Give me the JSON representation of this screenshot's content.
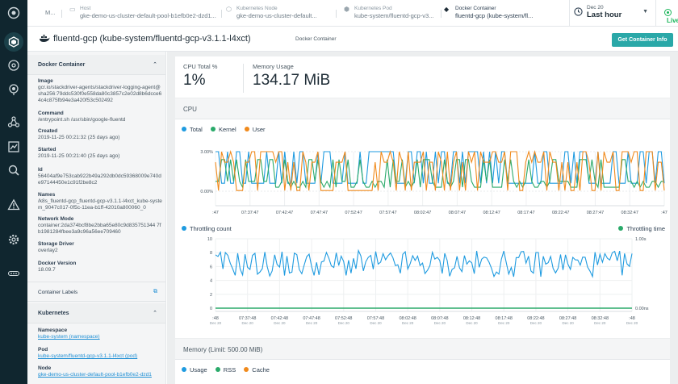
{
  "rail": {
    "icons": [
      "app-logo-icon",
      "explore-icon",
      "dashboard-icon",
      "alerts-icon",
      "topology-icon",
      "metrics-icon",
      "investigate-icon",
      "warning-icon",
      "settings-icon",
      "more-icon"
    ]
  },
  "breadcrumbs": [
    {
      "type": "",
      "name": "M..."
    },
    {
      "type": "Host",
      "name": "gke-demo-us-cluster-default-pool-b1efb0e2-dzd1..."
    },
    {
      "type": "Kubernetes Node",
      "name": "gke-demo-us-cluster-default..."
    },
    {
      "type": "Kubernetes Pod",
      "name": "kube-system/fluentd-gcp-v3..."
    },
    {
      "type": "Docker Container",
      "name": "fluentd-gcp (kube-system/fl..."
    }
  ],
  "time_picker": {
    "date": "Dec 20",
    "range": "Last hour"
  },
  "live": {
    "label": "Live",
    "color": "#19b55a"
  },
  "title": {
    "name": "fluentd-gcp (kube-system/fluentd-gcp-v3.1.1-l4xct)",
    "type_badge": "Docker Container",
    "action_button": "Get Container Info"
  },
  "side": {
    "docker_header": "Docker Container",
    "fields": [
      {
        "label": "Image",
        "value": "gcr.io/stackdriver-agents/stackdriver-logging-agent@sha256:79ddc530f0e558da80c3857c2e02d8b6dcce64c4c875fb94e3a420f53c502492"
      },
      {
        "label": "Command",
        "value": "/entrypoint.sh /usr/sbin/google-fluentd"
      },
      {
        "label": "Created",
        "value": "2019-11-25 00:21:32 (25 days ago)"
      },
      {
        "label": "Started",
        "value": "2019-11-25 00:21:40 (25 days ago)"
      },
      {
        "label": "Id",
        "value": "56404af9e753cab922b49a292db0dc59368009e740de97144450e1c91f2be8c2"
      },
      {
        "label": "Names",
        "value": "/k8s_fluentd-gcp_fluentd-gcp-v3.1.1-l4xct_kube-system_9047c017-0f5c-11ea-b1ff-42010a800060_0"
      },
      {
        "label": "Network Mode",
        "value": "container:2da374bcf8be2bba65e80c9d835751344 7fb1981284fbee3a9c96a56ee709460"
      },
      {
        "label": "Storage Driver",
        "value": "overlay2"
      },
      {
        "label": "Docker Version",
        "value": "18.09.7"
      }
    ],
    "labels_row": "Container Labels",
    "kubernetes_header": "Kubernetes",
    "kube_fields": [
      {
        "label": "Namespace",
        "value": "kube-system (namespace)"
      },
      {
        "label": "Pod",
        "value": "kube-system/fluentd-gcp-v3.1.1-l4xct (pod)"
      },
      {
        "label": "Node",
        "value": "gke-demo-us-cluster-default-pool-b1efb0e2-dzd1"
      }
    ]
  },
  "stats": [
    {
      "label": "CPU Total %",
      "value": "1%"
    },
    {
      "label": "Memory Usage",
      "value": "134.17 MiB"
    }
  ],
  "cpu_card": {
    "title": "CPU"
  },
  "memory_card": {
    "title": "Memory (Limit: 500.00 MiB)"
  },
  "chart_data": [
    {
      "type": "line",
      "title": "CPU",
      "series": [
        {
          "name": "Total",
          "color": "#1f9be0"
        },
        {
          "name": "Kernel",
          "color": "#2aaa6a"
        },
        {
          "name": "User",
          "color": "#f08a1c"
        }
      ],
      "ytick_labels": [
        "3.00%",
        "0.00%"
      ],
      "ylim": [
        0,
        3
      ],
      "xtick_labels": [
        ":47",
        "07:37:47",
        "07:42:47",
        "07:47:47",
        "07:52:47",
        "07:57:47",
        "08:02:47",
        "08:07:47",
        "08:12:47",
        "08:17:47",
        "08:22:47",
        "08:27:47",
        "08:32:47",
        ":47"
      ],
      "xtick_date": "Dec 20",
      "grid": true,
      "legend": "top-left"
    },
    {
      "type": "line",
      "title": "",
      "series": [
        {
          "name": "Throttling count",
          "color": "#1f9be0",
          "axis": "left"
        },
        {
          "name": "Throttling time",
          "color": "#2aaa6a",
          "axis": "right"
        }
      ],
      "ytick_labels_left": [
        "10",
        "8",
        "6",
        "4",
        "2",
        "0"
      ],
      "ytick_labels_right": [
        "1.00s",
        "0.00ns"
      ],
      "ylim": [
        0,
        10
      ],
      "xtick_labels": [
        ":48",
        "07:37:48",
        "07:42:48",
        "07:47:48",
        "07:52:48",
        "07:57:48",
        "08:02:48",
        "08:07:48",
        "08:12:48",
        "08:17:48",
        "08:22:48",
        "08:27:48",
        "08:32:48",
        ":48"
      ],
      "xtick_date": "Dec 20",
      "grid": true,
      "legend": "top-left / top-right"
    },
    {
      "type": "line",
      "title": "Memory (Limit: 500.00 MiB)",
      "series": [
        {
          "name": "Usage",
          "color": "#1f9be0"
        },
        {
          "name": "RSS",
          "color": "#2aaa6a"
        },
        {
          "name": "Cache",
          "color": "#f08a1c"
        }
      ],
      "legend": "top-left"
    }
  ]
}
